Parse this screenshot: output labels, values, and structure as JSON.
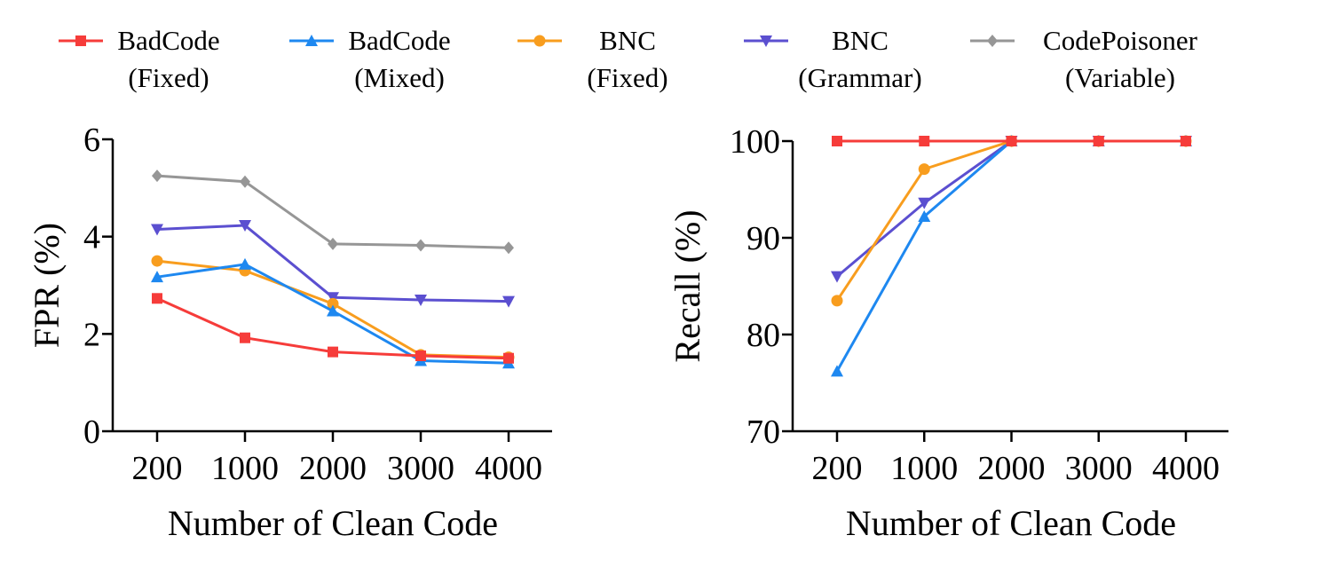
{
  "legend": [
    {
      "key": "badcode_fixed",
      "line1": "BadCode",
      "line2": "(Fixed)",
      "color": "#f63c3a",
      "marker": "square"
    },
    {
      "key": "badcode_mixed",
      "line1": "BadCode",
      "line2": "(Mixed)",
      "color": "#1e88f0",
      "marker": "triangle-up"
    },
    {
      "key": "bnc_fixed",
      "line1": "BNC",
      "line2": "(Fixed)",
      "color": "#f89d1e",
      "marker": "circle"
    },
    {
      "key": "bnc_grammar",
      "line1": "BNC",
      "line2": "(Grammar)",
      "color": "#5b4fd0",
      "marker": "triangle-down"
    },
    {
      "key": "codepoisoner_variable",
      "line1": "CodePoisoner",
      "line2": "(Variable)",
      "color": "#969696",
      "marker": "diamond"
    }
  ],
  "chart_data": [
    {
      "type": "line",
      "xlabel": "Number of Clean Code",
      "ylabel": "FPR (%)",
      "categories": [
        "200",
        "1000",
        "2000",
        "3000",
        "4000"
      ],
      "ylim": [
        0,
        6
      ],
      "yticks": [
        "0",
        "2",
        "4",
        "6"
      ],
      "series": [
        {
          "key": "badcode_fixed",
          "values": [
            2.73,
            1.92,
            1.63,
            1.55,
            1.5
          ]
        },
        {
          "key": "badcode_mixed",
          "values": [
            3.17,
            3.43,
            2.47,
            1.45,
            1.4
          ]
        },
        {
          "key": "bnc_fixed",
          "values": [
            3.5,
            3.3,
            2.62,
            1.57,
            1.52
          ]
        },
        {
          "key": "bnc_grammar",
          "values": [
            4.15,
            4.23,
            2.75,
            2.7,
            2.67
          ]
        },
        {
          "key": "codepoisoner_variable",
          "values": [
            5.25,
            5.13,
            3.85,
            3.82,
            3.77
          ]
        }
      ]
    },
    {
      "type": "line",
      "xlabel": "Number of Clean Code",
      "ylabel": "Recall (%)",
      "categories": [
        "200",
        "1000",
        "2000",
        "3000",
        "4000"
      ],
      "ylim": [
        70,
        100
      ],
      "yticks": [
        "70",
        "80",
        "90",
        "100"
      ],
      "series": [
        {
          "key": "badcode_fixed",
          "values": [
            100,
            100,
            100,
            100,
            100
          ]
        },
        {
          "key": "badcode_mixed",
          "values": [
            76.2,
            92.2,
            100,
            100,
            100
          ]
        },
        {
          "key": "bnc_fixed",
          "values": [
            83.5,
            97.1,
            100,
            100,
            100
          ]
        },
        {
          "key": "bnc_grammar",
          "values": [
            86,
            93.6,
            100,
            100,
            100
          ]
        }
      ]
    }
  ]
}
